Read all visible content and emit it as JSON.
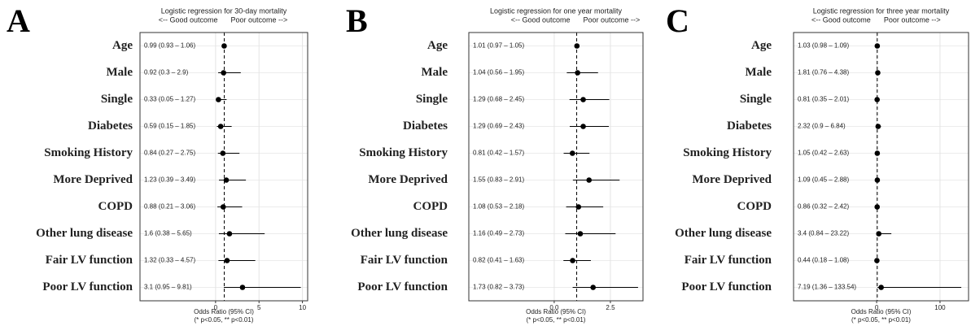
{
  "chart_data": [
    {
      "type": "forest",
      "panel_label": "A",
      "title": "Logistic regression for 30-day mortality",
      "left_annotation": "<-- Good outcome",
      "right_annotation": "Poor outcome -->",
      "xlabel": "Odds Ratio (95% CI)",
      "note": "(* p<0.05, ** p<0.01)",
      "categories": [
        "Age",
        "Male",
        "Single",
        "Diabetes",
        "Smoking History",
        "More Deprived",
        "COPD",
        "Other lung disease",
        "Fair LV function",
        "Poor LV function"
      ],
      "values": [
        0.99,
        0.92,
        0.33,
        0.59,
        0.84,
        1.23,
        0.88,
        1.6,
        1.32,
        3.1
      ],
      "lower": [
        0.93,
        0.3,
        0.05,
        0.15,
        0.27,
        0.39,
        0.21,
        0.38,
        0.33,
        0.95
      ],
      "upper": [
        1.06,
        2.9,
        1.27,
        1.85,
        2.75,
        3.49,
        3.06,
        5.65,
        4.57,
        9.81
      ],
      "value_labels": [
        "0.99 (0.93 – 1.06)",
        "0.92 (0.3 – 2.9)",
        "0.33 (0.05 – 1.27)",
        "0.59 (0.15 – 1.85)",
        "0.84 (0.27 – 2.75)",
        "1.23 (0.39 – 3.49)",
        "0.88 (0.21 – 3.06)",
        "1.6 (0.38 – 5.65)",
        "1.32 (0.33 – 4.57)",
        "3.1 (0.95 – 9.81)"
      ],
      "reference_line": 1,
      "xlim": [
        -8.7,
        10.6
      ],
      "xticks": [
        0,
        5,
        10
      ],
      "grid": true,
      "color": "#000000"
    },
    {
      "type": "forest",
      "panel_label": "B",
      "title": "Logistic regression for one year mortality",
      "left_annotation": "<-- Good outcome",
      "right_annotation": "Poor outcome -->",
      "xlabel": "Odds Ratio (95% CI)",
      "note": "(* p<0.05, ** p<0.01)",
      "categories": [
        "Age",
        "Male",
        "Single",
        "Diabetes",
        "Smoking History",
        "More Deprived",
        "COPD",
        "Other lung disease",
        "Fair LV function",
        "Poor LV function"
      ],
      "values": [
        1.01,
        1.04,
        1.29,
        1.29,
        0.81,
        1.55,
        1.08,
        1.16,
        0.82,
        1.73
      ],
      "lower": [
        0.97,
        0.56,
        0.68,
        0.69,
        0.42,
        0.83,
        0.53,
        0.49,
        0.41,
        0.82
      ],
      "upper": [
        1.05,
        1.95,
        2.45,
        2.43,
        1.57,
        2.91,
        2.18,
        2.73,
        1.63,
        3.73
      ],
      "value_labels": [
        "1.01 (0.97 – 1.05)",
        "1.04 (0.56 – 1.95)",
        "1.29 (0.68 – 2.45)",
        "1.29 (0.69 – 2.43)",
        "0.81 (0.42 – 1.57)",
        "1.55 (0.83 – 2.91)",
        "1.08 (0.53 – 2.18)",
        "1.16 (0.49 – 2.73)",
        "0.82 (0.41 – 1.63)",
        "1.73 (0.82 – 3.73)"
      ],
      "reference_line": 1,
      "xlim": [
        -3.8,
        3.95
      ],
      "xticks": [
        {
          "value": 0,
          "label": "0.0"
        },
        2.5
      ],
      "grid": true,
      "color": "#000000"
    },
    {
      "type": "forest",
      "panel_label": "C",
      "title": "Logistic regression for three year mortality",
      "left_annotation": "<-- Good outcome",
      "right_annotation": "Poor outcome -->",
      "xlabel": "Odds Ratio (95% CI)",
      "note": "(* p<0.05, ** p<0.01)",
      "categories": [
        "Age",
        "Male",
        "Single",
        "Diabetes",
        "Smoking History",
        "More Deprived",
        "COPD",
        "Other lung disease",
        "Fair LV function",
        "Poor LV function"
      ],
      "values": [
        1.03,
        1.81,
        0.81,
        2.32,
        1.05,
        1.09,
        0.86,
        3.4,
        0.44,
        7.19
      ],
      "lower": [
        0.98,
        0.76,
        0.35,
        0.9,
        0.42,
        0.45,
        0.32,
        0.84,
        0.18,
        1.36
      ],
      "upper": [
        1.09,
        4.38,
        2.01,
        6.84,
        2.63,
        2.88,
        2.42,
        23.22,
        1.08,
        133.54
      ],
      "value_labels": [
        "1.03 (0.98 – 1.09)",
        "1.81 (0.76 – 4.38)",
        "0.81 (0.35 – 2.01)",
        "2.32 (0.9 – 6.84)",
        "1.05 (0.42 – 2.63)",
        "1.09 (0.45 – 2.88)",
        "0.86 (0.32 – 2.42)",
        "3.4 (0.84 – 23.22)",
        "0.44 (0.18 – 1.08)",
        "7.19 (1.36 – 133.54)"
      ],
      "reference_line": 1,
      "xlim": [
        -131,
        145
      ],
      "xticks": [
        0,
        100
      ],
      "grid": true,
      "color": "#000000"
    }
  ]
}
